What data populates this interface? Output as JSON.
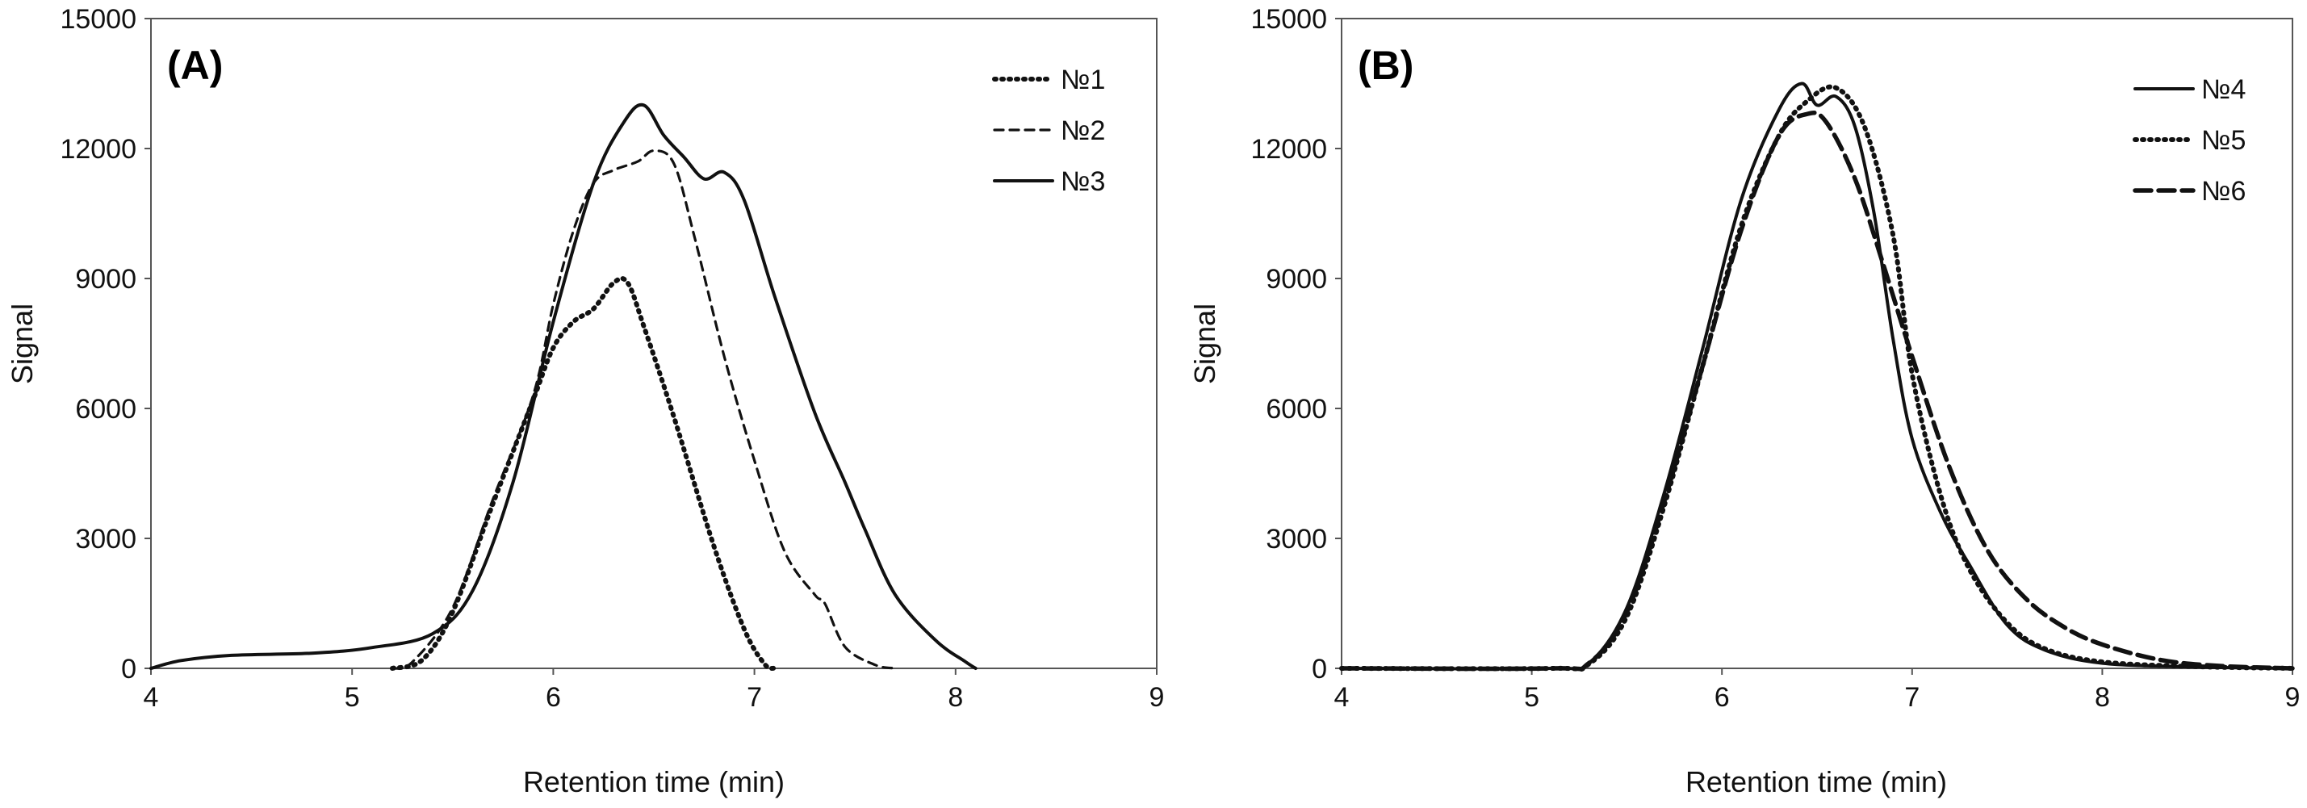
{
  "chart_data": [
    {
      "type": "line",
      "panel_label": "(A)",
      "xlabel": "Retention time (min)",
      "ylabel": "Signal",
      "xlim": [
        4,
        9
      ],
      "ylim": [
        0,
        15000
      ],
      "xticks": [
        4,
        5,
        6,
        7,
        8,
        9
      ],
      "yticks": [
        0,
        3000,
        6000,
        9000,
        12000,
        15000
      ],
      "legend_position": "top-right",
      "series": [
        {
          "name": "№1",
          "style": "dotted",
          "points": [
            [
              5.2,
              0
            ],
            [
              5.35,
              200
            ],
            [
              5.5,
              1300
            ],
            [
              5.7,
              3800
            ],
            [
              5.9,
              6200
            ],
            [
              6.0,
              7400
            ],
            [
              6.1,
              8000
            ],
            [
              6.2,
              8300
            ],
            [
              6.3,
              8900
            ],
            [
              6.37,
              8900
            ],
            [
              6.45,
              7900
            ],
            [
              6.6,
              5800
            ],
            [
              6.8,
              2800
            ],
            [
              6.95,
              900
            ],
            [
              7.05,
              100
            ],
            [
              7.1,
              0
            ]
          ]
        },
        {
          "name": "№2",
          "style": "dashed",
          "points": [
            [
              5.2,
              0
            ],
            [
              5.3,
              150
            ],
            [
              5.5,
              1400
            ],
            [
              5.7,
              3900
            ],
            [
              5.9,
              6300
            ],
            [
              6.0,
              8400
            ],
            [
              6.1,
              10100
            ],
            [
              6.2,
              11200
            ],
            [
              6.3,
              11500
            ],
            [
              6.42,
              11700
            ],
            [
              6.5,
              11950
            ],
            [
              6.6,
              11650
            ],
            [
              6.7,
              10000
            ],
            [
              6.85,
              7200
            ],
            [
              7.0,
              4800
            ],
            [
              7.15,
              2700
            ],
            [
              7.3,
              1700
            ],
            [
              7.35,
              1500
            ],
            [
              7.45,
              500
            ],
            [
              7.6,
              80
            ],
            [
              7.7,
              0
            ]
          ]
        },
        {
          "name": "№3",
          "style": "solid",
          "points": [
            [
              4.0,
              0
            ],
            [
              4.15,
              180
            ],
            [
              4.4,
              300
            ],
            [
              4.8,
              350
            ],
            [
              5.1,
              480
            ],
            [
              5.4,
              800
            ],
            [
              5.6,
              1800
            ],
            [
              5.8,
              4300
            ],
            [
              6.0,
              8000
            ],
            [
              6.2,
              11200
            ],
            [
              6.35,
              12600
            ],
            [
              6.45,
              13000
            ],
            [
              6.55,
              12300
            ],
            [
              6.65,
              11800
            ],
            [
              6.75,
              11300
            ],
            [
              6.85,
              11450
            ],
            [
              6.95,
              10800
            ],
            [
              7.1,
              8600
            ],
            [
              7.3,
              5900
            ],
            [
              7.45,
              4300
            ],
            [
              7.55,
              3200
            ],
            [
              7.7,
              1700
            ],
            [
              7.9,
              650
            ],
            [
              8.05,
              150
            ],
            [
              8.1,
              0
            ]
          ]
        }
      ]
    },
    {
      "type": "line",
      "panel_label": "(B)",
      "xlabel": "Retention time (min)",
      "ylabel": "Signal",
      "xlim": [
        4,
        9
      ],
      "ylim": [
        0,
        15000
      ],
      "xticks": [
        4,
        5,
        6,
        7,
        8,
        9
      ],
      "yticks": [
        0,
        3000,
        6000,
        9000,
        12000,
        15000
      ],
      "legend_position": "top-right",
      "series": [
        {
          "name": "№4",
          "style": "solid",
          "points": [
            [
              4.0,
              0
            ],
            [
              5.1,
              0
            ],
            [
              5.3,
              120
            ],
            [
              5.5,
              1400
            ],
            [
              5.7,
              4100
            ],
            [
              5.9,
              7400
            ],
            [
              6.1,
              10800
            ],
            [
              6.3,
              12900
            ],
            [
              6.42,
              13500
            ],
            [
              6.5,
              13000
            ],
            [
              6.6,
              13200
            ],
            [
              6.7,
              12500
            ],
            [
              6.8,
              10500
            ],
            [
              6.9,
              7600
            ],
            [
              7.0,
              5300
            ],
            [
              7.15,
              3600
            ],
            [
              7.3,
              2400
            ],
            [
              7.5,
              1000
            ],
            [
              7.7,
              420
            ],
            [
              8.0,
              120
            ],
            [
              8.5,
              30
            ],
            [
              9.0,
              0
            ]
          ]
        },
        {
          "name": "№5",
          "style": "dotted",
          "points": [
            [
              4.0,
              0
            ],
            [
              5.1,
              0
            ],
            [
              5.3,
              100
            ],
            [
              5.5,
              1200
            ],
            [
              5.7,
              3800
            ],
            [
              5.9,
              7000
            ],
            [
              6.1,
              10200
            ],
            [
              6.3,
              12300
            ],
            [
              6.45,
              13100
            ],
            [
              6.6,
              13400
            ],
            [
              6.75,
              12500
            ],
            [
              6.9,
              10000
            ],
            [
              7.0,
              6800
            ],
            [
              7.15,
              4000
            ],
            [
              7.3,
              2300
            ],
            [
              7.5,
              1050
            ],
            [
              7.7,
              450
            ],
            [
              8.0,
              150
            ],
            [
              8.5,
              40
            ],
            [
              9.0,
              0
            ]
          ]
        },
        {
          "name": "№6",
          "style": "dashed",
          "points": [
            [
              4.0,
              0
            ],
            [
              5.1,
              0
            ],
            [
              5.3,
              120
            ],
            [
              5.5,
              1300
            ],
            [
              5.7,
              3900
            ],
            [
              5.9,
              7000
            ],
            [
              6.1,
              10100
            ],
            [
              6.3,
              12300
            ],
            [
              6.45,
              12800
            ],
            [
              6.55,
              12600
            ],
            [
              6.7,
              11300
            ],
            [
              6.85,
              9300
            ],
            [
              7.0,
              7200
            ],
            [
              7.2,
              4600
            ],
            [
              7.4,
              2700
            ],
            [
              7.6,
              1600
            ],
            [
              7.8,
              950
            ],
            [
              8.0,
              550
            ],
            [
              8.3,
              200
            ],
            [
              8.6,
              60
            ],
            [
              9.0,
              0
            ]
          ]
        }
      ]
    }
  ]
}
